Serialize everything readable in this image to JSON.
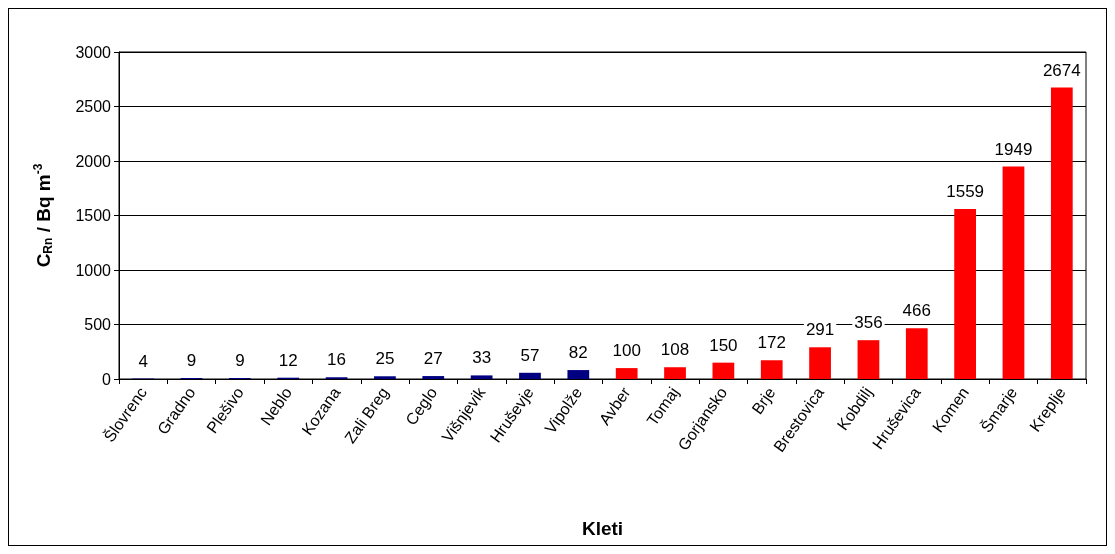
{
  "chart_data": {
    "type": "bar",
    "xlabel": "Kleti",
    "ylabel": "C$_{Rn}$ / Bq m$^{-3}$",
    "categories": [
      "Šlovrenc",
      "Gradno",
      "Plešivo",
      "Neblo",
      "Kozana",
      "Zali Breg",
      "Ceglo",
      "Višnjevik",
      "Hruševje",
      "Vipolže",
      "Avber",
      "Tomaj",
      "Gorjansko",
      "Brje",
      "Brestovica",
      "Kobdilj",
      "Hruševica",
      "Komen",
      "Šmarje",
      "Kreplje"
    ],
    "values": [
      4,
      9,
      9,
      12,
      16,
      25,
      27,
      33,
      57,
      82,
      100,
      108,
      150,
      172,
      291,
      356,
      466,
      1559,
      1949,
      2674
    ],
    "colors": [
      "#000080",
      "#000080",
      "#000080",
      "#000080",
      "#000080",
      "#000080",
      "#000080",
      "#000080",
      "#000080",
      "#000080",
      "#ff0000",
      "#ff0000",
      "#ff0000",
      "#ff0000",
      "#ff0000",
      "#ff0000",
      "#ff0000",
      "#ff0000",
      "#ff0000",
      "#ff0000"
    ],
    "ylim": [
      0,
      3000
    ],
    "yticks": [
      0,
      500,
      1000,
      1500,
      2000,
      2500,
      3000
    ],
    "grid": "y",
    "data_labels": true
  }
}
